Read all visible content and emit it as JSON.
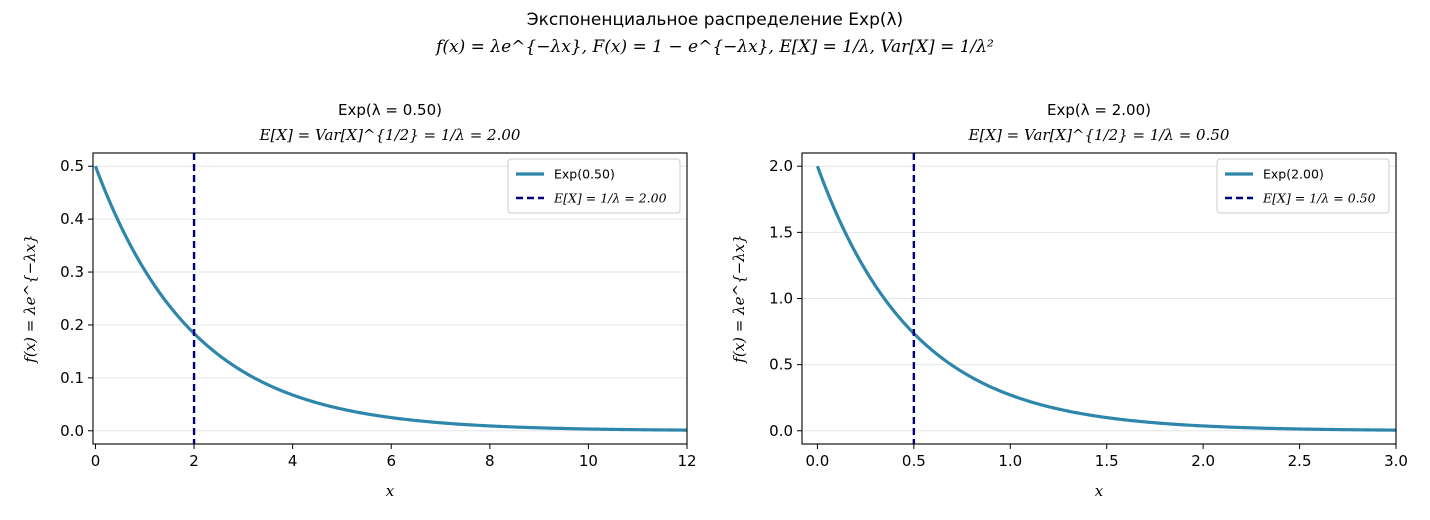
{
  "suptitle": {
    "line1": "Экспоненциальное распределение Exp(λ)",
    "line2": "f(x) = λe^{−λx},  F(x) = 1 − e^{−λx},  E[X] = 1/λ,  Var[X] = 1/λ²"
  },
  "colors": {
    "curve": "#2e86ab",
    "mean_line": "#000080",
    "grid": "#e6e6e6"
  },
  "chart_data": [
    {
      "type": "line",
      "title_line1": "Exp(λ = 0.50)",
      "title_line2": "E[X] = Var[X]^{1/2} = 1/λ = 2.00",
      "xlabel": "x",
      "ylabel": "f(x) = λe^{−λx}",
      "lambda": 0.5,
      "xlim": [
        -0.05,
        12
      ],
      "ylim": [
        -0.025,
        0.525
      ],
      "xticks": [
        0,
        2,
        4,
        6,
        8,
        10,
        12
      ],
      "xtick_labels": [
        "0",
        "2",
        "4",
        "6",
        "8",
        "10",
        "12"
      ],
      "yticks": [
        0.0,
        0.1,
        0.2,
        0.3,
        0.4,
        0.5
      ],
      "ytick_labels": [
        "0.0",
        "0.1",
        "0.2",
        "0.3",
        "0.4",
        "0.5"
      ],
      "mean_x": 2.0,
      "x_range": [
        0,
        12
      ],
      "grid": "y",
      "legend_position": "upper right",
      "series": [
        {
          "name": "Exp(0.50)",
          "style": "solid"
        },
        {
          "name": "E[X] = 1/λ = 2.00",
          "style": "dashed"
        }
      ]
    },
    {
      "type": "line",
      "title_line1": "Exp(λ = 2.00)",
      "title_line2": "E[X] = Var[X]^{1/2} = 1/λ = 0.50",
      "xlabel": "x",
      "ylabel": "f(x) = λe^{−λx}",
      "lambda": 2.0,
      "xlim": [
        -0.08,
        3
      ],
      "ylim": [
        -0.1,
        2.1
      ],
      "xticks": [
        0.0,
        0.5,
        1.0,
        1.5,
        2.0,
        2.5,
        3.0
      ],
      "xtick_labels": [
        "0.0",
        "0.5",
        "1.0",
        "1.5",
        "2.0",
        "2.5",
        "3.0"
      ],
      "yticks": [
        0.0,
        0.5,
        1.0,
        1.5,
        2.0
      ],
      "ytick_labels": [
        "0.0",
        "0.5",
        "1.0",
        "1.5",
        "2.0"
      ],
      "mean_x": 0.5,
      "x_range": [
        0,
        3
      ],
      "grid": "y",
      "legend_position": "upper right",
      "series": [
        {
          "name": "Exp(2.00)",
          "style": "solid"
        },
        {
          "name": "E[X] = 1/λ = 0.50",
          "style": "dashed"
        }
      ]
    }
  ]
}
